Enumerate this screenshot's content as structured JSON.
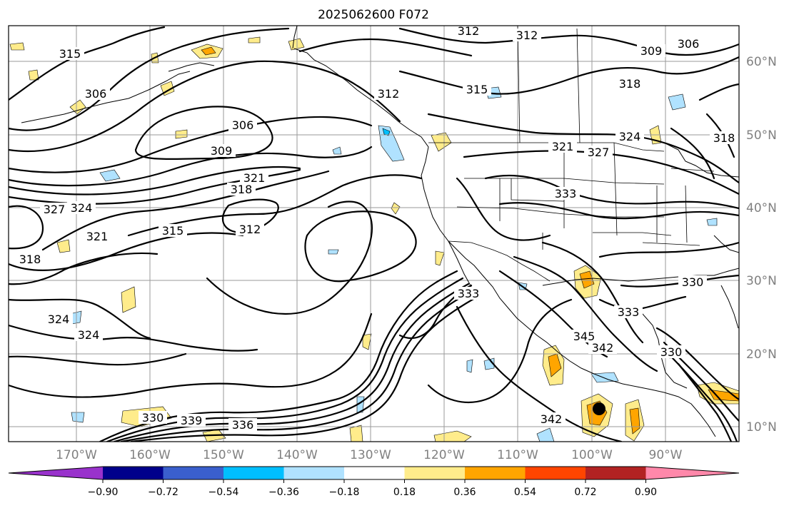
{
  "title": "2025062600 F072",
  "lon_labels": [
    "170°W",
    "160°W",
    "150°W",
    "140°W",
    "130°W",
    "120°W",
    "110°W",
    "100°W",
    "90°W"
  ],
  "lat_labels": [
    "60°N",
    "50°N",
    "40°N",
    "30°N",
    "20°N",
    "10°N"
  ],
  "contour_labels": [
    {
      "name": "contour-label-306",
      "text": "306"
    },
    {
      "name": "contour-label-309",
      "text": "309"
    },
    {
      "name": "contour-label-312",
      "text": "312"
    },
    {
      "name": "contour-label-315",
      "text": "315"
    },
    {
      "name": "contour-label-318",
      "text": "318"
    },
    {
      "name": "contour-label-321",
      "text": "321"
    },
    {
      "name": "contour-label-324",
      "text": "324"
    },
    {
      "name": "contour-label-327",
      "text": "327"
    },
    {
      "name": "contour-label-330",
      "text": "330"
    },
    {
      "name": "contour-label-333",
      "text": "333"
    },
    {
      "name": "contour-label-336",
      "text": "336"
    },
    {
      "name": "contour-label-339",
      "text": "339"
    },
    {
      "name": "contour-label-342",
      "text": "342"
    },
    {
      "name": "contour-label-345",
      "text": "345"
    }
  ],
  "colorbar": {
    "colors": [
      "#9932cc",
      "#00008b",
      "#3a5fcd",
      "#00bfff",
      "#b0e2ff",
      "#ffffff",
      "#ffec8b",
      "#ffa500",
      "#ff4500",
      "#b22222",
      "#ff88aa"
    ],
    "tick_labels": [
      "−0.90",
      "−0.72",
      "−0.54",
      "−0.36",
      "−0.18",
      "0.18",
      "0.36",
      "0.54",
      "0.72",
      "0.90"
    ]
  },
  "shading_colors": {
    "light_yellow": "#ffec8b",
    "orange": "#ffa500",
    "light_blue": "#b0e2ff",
    "sky_blue": "#00bfff"
  },
  "marker": {
    "name": "storm-center-marker",
    "color": "#000000"
  }
}
